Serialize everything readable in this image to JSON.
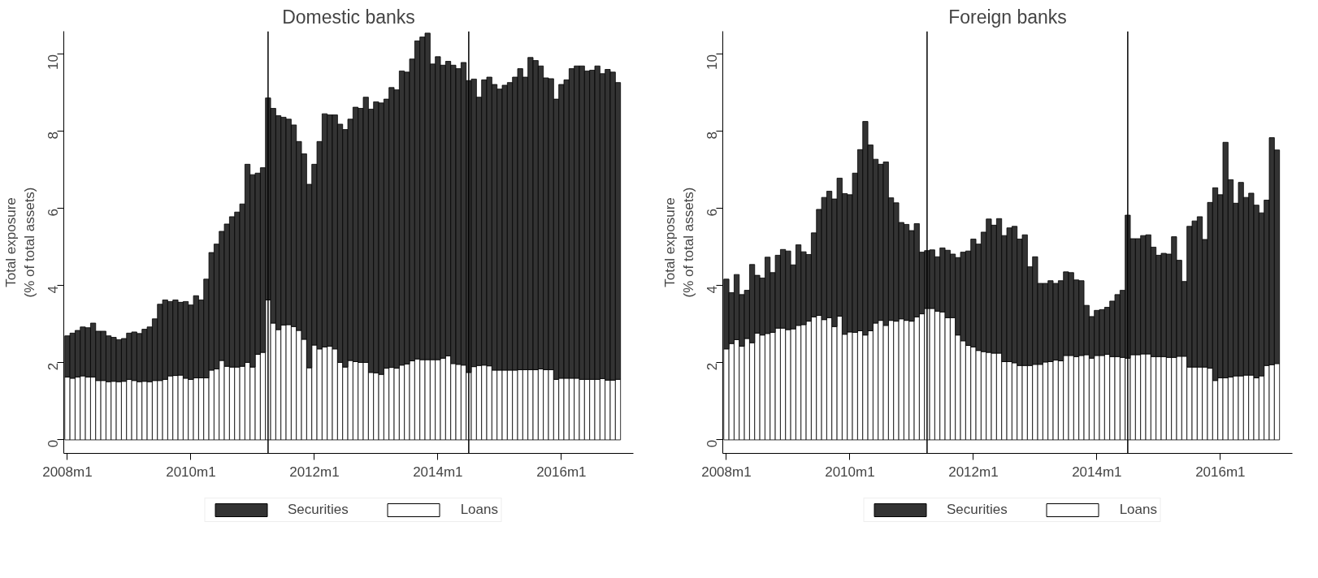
{
  "chart_data": [
    {
      "type": "bar",
      "stacked": true,
      "title": "Domestic banks",
      "ylabel": "Total exposure\n(% of total assets)",
      "x": [
        "2008-01",
        "2008-02",
        "2008-03",
        "2008-04",
        "2008-05",
        "2008-06",
        "2008-07",
        "2008-08",
        "2008-09",
        "2008-10",
        "2008-11",
        "2008-12",
        "2009-01",
        "2009-02",
        "2009-03",
        "2009-04",
        "2009-05",
        "2009-06",
        "2009-07",
        "2009-08",
        "2009-09",
        "2009-10",
        "2009-11",
        "2009-12",
        "2010-01",
        "2010-02",
        "2010-03",
        "2010-04",
        "2010-05",
        "2010-06",
        "2010-07",
        "2010-08",
        "2010-09",
        "2010-10",
        "2010-11",
        "2010-12",
        "2011-01",
        "2011-02",
        "2011-03",
        "2011-04",
        "2011-05",
        "2011-06",
        "2011-07",
        "2011-08",
        "2011-09",
        "2011-10",
        "2011-11",
        "2011-12",
        "2012-01",
        "2012-02",
        "2012-03",
        "2012-04",
        "2012-05",
        "2012-06",
        "2012-07",
        "2012-08",
        "2012-09",
        "2012-10",
        "2012-11",
        "2012-12",
        "2013-01",
        "2013-02",
        "2013-03",
        "2013-04",
        "2013-05",
        "2013-06",
        "2013-07",
        "2013-08",
        "2013-09",
        "2013-10",
        "2013-11",
        "2013-12",
        "2014-01",
        "2014-02",
        "2014-03",
        "2014-04",
        "2014-05",
        "2014-06",
        "2014-07",
        "2014-08",
        "2014-09",
        "2014-10",
        "2014-11",
        "2014-12",
        "2015-01",
        "2015-02",
        "2015-03",
        "2015-04",
        "2015-05",
        "2015-06",
        "2015-07",
        "2015-08",
        "2015-09",
        "2015-10",
        "2015-11",
        "2015-12",
        "2016-01",
        "2016-02",
        "2016-03",
        "2016-04",
        "2016-05",
        "2016-06",
        "2016-07",
        "2016-08",
        "2016-09",
        "2016-10",
        "2016-11",
        "2016-12"
      ],
      "series": [
        {
          "name": "Loans",
          "color": "#ffffff",
          "values": [
            1.63,
            1.6,
            1.63,
            1.66,
            1.63,
            1.63,
            1.54,
            1.54,
            1.51,
            1.52,
            1.51,
            1.52,
            1.57,
            1.54,
            1.51,
            1.52,
            1.51,
            1.54,
            1.54,
            1.57,
            1.66,
            1.67,
            1.68,
            1.6,
            1.57,
            1.61,
            1.61,
            1.61,
            1.81,
            1.84,
            2.06,
            1.91,
            1.89,
            1.89,
            1.91,
            2.01,
            1.89,
            2.22,
            2.27,
            3.63,
            3.03,
            2.86,
            2.98,
            2.99,
            2.94,
            2.84,
            2.61,
            1.87,
            2.46,
            2.36,
            2.41,
            2.43,
            2.36,
            2.01,
            1.89,
            2.06,
            2.03,
            2.01,
            2.01,
            1.75,
            1.74,
            1.7,
            1.86,
            1.88,
            1.86,
            1.94,
            1.97,
            2.05,
            2.1,
            2.08,
            2.08,
            2.08,
            2.08,
            2.12,
            2.18,
            1.98,
            1.96,
            1.94,
            1.75,
            1.9,
            1.93,
            1.94,
            1.92,
            1.81,
            1.81,
            1.81,
            1.81,
            1.81,
            1.82,
            1.82,
            1.82,
            1.82,
            1.84,
            1.82,
            1.82,
            1.57,
            1.6,
            1.6,
            1.6,
            1.6,
            1.57,
            1.57,
            1.57,
            1.57,
            1.59,
            1.55,
            1.55,
            1.57
          ]
        },
        {
          "name": "Securities",
          "color": "#333333",
          "values": [
            1.07,
            1.17,
            1.21,
            1.27,
            1.28,
            1.4,
            1.28,
            1.28,
            1.19,
            1.14,
            1.09,
            1.11,
            1.2,
            1.26,
            1.25,
            1.35,
            1.42,
            1.6,
            1.98,
            2.06,
            1.93,
            1.96,
            1.89,
            1.99,
            1.93,
            2.13,
            2.02,
            2.56,
            3.05,
            3.24,
            3.35,
            3.69,
            3.9,
            4.02,
            4.21,
            5.14,
            4.99,
            4.7,
            4.79,
            5.24,
            5.57,
            5.55,
            5.39,
            5.33,
            5.23,
            4.9,
            4.81,
            4.76,
            4.69,
            5.38,
            6.05,
            6.0,
            6.07,
            6.18,
            6.16,
            6.26,
            6.6,
            6.59,
            6.88,
            6.83,
            7.03,
            7.04,
            6.98,
            7.26,
            7.22,
            7.63,
            7.57,
            7.83,
            8.25,
            8.37,
            8.47,
            7.67,
            7.86,
            7.6,
            7.64,
            7.74,
            7.67,
            7.85,
            7.57,
            7.46,
            6.96,
            7.4,
            7.49,
            7.41,
            7.29,
            7.39,
            7.46,
            7.6,
            7.81,
            7.59,
            8.1,
            8.02,
            7.86,
            7.57,
            7.55,
            7.27,
            7.62,
            7.74,
            8.03,
            8.1,
            8.13,
            8.0,
            8.02,
            8.13,
            7.91,
            8.06,
            7.99,
            7.7
          ]
        }
      ],
      "xlim": [
        "2007-12-10",
        "2017-03-01"
      ],
      "ylim": [
        -0.35,
        10.6
      ],
      "xticks": [
        {
          "value": "2008-01",
          "label": "2008m1"
        },
        {
          "value": "2010-01",
          "label": "2010m1"
        },
        {
          "value": "2012-01",
          "label": "2012m1"
        },
        {
          "value": "2014-01",
          "label": "2014m1"
        },
        {
          "value": "2016-01",
          "label": "2016m1"
        }
      ],
      "yticks": [
        0,
        2,
        4,
        6,
        8,
        10
      ],
      "ref_lines": [
        {
          "axis": "x",
          "value": "2011-04",
          "color": "#000000"
        },
        {
          "axis": "x",
          "value": "2014-07",
          "color": "#000000"
        }
      ],
      "grid": false,
      "legend": "bottom"
    },
    {
      "type": "bar",
      "stacked": true,
      "title": "Foreign banks",
      "ylabel": "Total exposure\n(% of total assets)",
      "x": [
        "2008-01",
        "2008-02",
        "2008-03",
        "2008-04",
        "2008-05",
        "2008-06",
        "2008-07",
        "2008-08",
        "2008-09",
        "2008-10",
        "2008-11",
        "2008-12",
        "2009-01",
        "2009-02",
        "2009-03",
        "2009-04",
        "2009-05",
        "2009-06",
        "2009-07",
        "2009-08",
        "2009-09",
        "2009-10",
        "2009-11",
        "2009-12",
        "2010-01",
        "2010-02",
        "2010-03",
        "2010-04",
        "2010-05",
        "2010-06",
        "2010-07",
        "2010-08",
        "2010-09",
        "2010-10",
        "2010-11",
        "2010-12",
        "2011-01",
        "2011-02",
        "2011-03",
        "2011-04",
        "2011-05",
        "2011-06",
        "2011-07",
        "2011-08",
        "2011-09",
        "2011-10",
        "2011-11",
        "2011-12",
        "2012-01",
        "2012-02",
        "2012-03",
        "2012-04",
        "2012-05",
        "2012-06",
        "2012-07",
        "2012-08",
        "2012-09",
        "2012-10",
        "2012-11",
        "2012-12",
        "2013-01",
        "2013-02",
        "2013-03",
        "2013-04",
        "2013-05",
        "2013-06",
        "2013-07",
        "2013-08",
        "2013-09",
        "2013-10",
        "2013-11",
        "2013-12",
        "2014-01",
        "2014-02",
        "2014-03",
        "2014-04",
        "2014-05",
        "2014-06",
        "2014-07",
        "2014-08",
        "2014-09",
        "2014-10",
        "2014-11",
        "2014-12",
        "2015-01",
        "2015-02",
        "2015-03",
        "2015-04",
        "2015-05",
        "2015-06",
        "2015-07",
        "2015-08",
        "2015-09",
        "2015-10",
        "2015-11",
        "2015-12",
        "2016-01",
        "2016-02",
        "2016-03",
        "2016-04",
        "2016-05",
        "2016-06",
        "2016-07",
        "2016-08",
        "2016-09",
        "2016-10",
        "2016-11",
        "2016-12"
      ],
      "series": [
        {
          "name": "Loans",
          "color": "#ffffff",
          "values": [
            2.36,
            2.5,
            2.6,
            2.43,
            2.63,
            2.52,
            2.77,
            2.72,
            2.76,
            2.79,
            2.9,
            2.9,
            2.86,
            2.88,
            2.97,
            2.99,
            3.08,
            3.19,
            3.23,
            3.12,
            3.17,
            2.94,
            3.21,
            2.74,
            2.8,
            2.79,
            2.83,
            2.72,
            2.83,
            3.03,
            3.1,
            2.97,
            3.1,
            3.08,
            3.14,
            3.1,
            3.08,
            3.19,
            3.27,
            3.41,
            3.41,
            3.34,
            3.32,
            3.17,
            3.17,
            2.72,
            2.57,
            2.45,
            2.41,
            2.32,
            2.29,
            2.27,
            2.25,
            2.25,
            2.03,
            2.03,
            2.0,
            1.93,
            1.93,
            1.93,
            1.96,
            1.96,
            2.02,
            2.03,
            2.07,
            2.05,
            2.19,
            2.19,
            2.16,
            2.19,
            2.21,
            2.12,
            2.19,
            2.19,
            2.22,
            2.16,
            2.16,
            2.14,
            2.12,
            2.21,
            2.21,
            2.23,
            2.23,
            2.16,
            2.16,
            2.16,
            2.14,
            2.14,
            2.17,
            2.17,
            1.89,
            1.89,
            1.89,
            1.89,
            1.86,
            1.54,
            1.61,
            1.61,
            1.63,
            1.66,
            1.66,
            1.68,
            1.68,
            1.61,
            1.66,
            1.93,
            1.95,
            1.98
          ]
        },
        {
          "name": "Securities",
          "color": "#333333",
          "values": [
            1.81,
            1.32,
            1.69,
            1.34,
            1.25,
            2.03,
            1.5,
            1.48,
            1.98,
            1.55,
            1.89,
            2.04,
            2.04,
            1.66,
            2.09,
            1.89,
            1.73,
            2.18,
            2.75,
            3.17,
            3.28,
            3.31,
            3.58,
            3.65,
            3.56,
            4.13,
            4.7,
            5.54,
            4.82,
            4.25,
            4.05,
            4.24,
            3.18,
            3.07,
            2.5,
            2.49,
            2.35,
            2.42,
            1.6,
            1.5,
            1.52,
            1.41,
            1.66,
            1.75,
            1.65,
            2.01,
            2.3,
            2.45,
            2.8,
            2.76,
            3.1,
            3.46,
            3.32,
            3.49,
            3.27,
            3.47,
            3.54,
            3.28,
            3.39,
            2.56,
            2.79,
            2.1,
            2.04,
            2.1,
            1.99,
            2.08,
            2.17,
            2.15,
            1.99,
            1.94,
            1.28,
            1.08,
            1.17,
            1.19,
            1.22,
            1.44,
            1.61,
            1.74,
            3.71,
            3.01,
            3.01,
            3.07,
            3.09,
            2.84,
            2.63,
            2.68,
            2.68,
            3.13,
            2.49,
            1.94,
            3.65,
            3.79,
            3.9,
            3.31,
            4.3,
            5.0,
            4.75,
            6.11,
            5.12,
            4.48,
            5.02,
            4.61,
            4.72,
            4.48,
            4.23,
            4.29,
            5.89,
            5.54
          ]
        }
      ],
      "xlim": [
        "2007-12-10",
        "2017-03-01"
      ],
      "ylim": [
        -0.35,
        10.6
      ],
      "xticks": [
        {
          "value": "2008-01",
          "label": "2008m1"
        },
        {
          "value": "2010-01",
          "label": "2010m1"
        },
        {
          "value": "2012-01",
          "label": "2012m1"
        },
        {
          "value": "2014-01",
          "label": "2014m1"
        },
        {
          "value": "2016-01",
          "label": "2016m1"
        }
      ],
      "yticks": [
        0,
        2,
        4,
        6,
        8,
        10
      ],
      "ref_lines": [
        {
          "axis": "x",
          "value": "2011-04",
          "color": "#000000"
        },
        {
          "axis": "x",
          "value": "2014-07",
          "color": "#000000"
        }
      ],
      "grid": false,
      "legend": "bottom"
    }
  ]
}
